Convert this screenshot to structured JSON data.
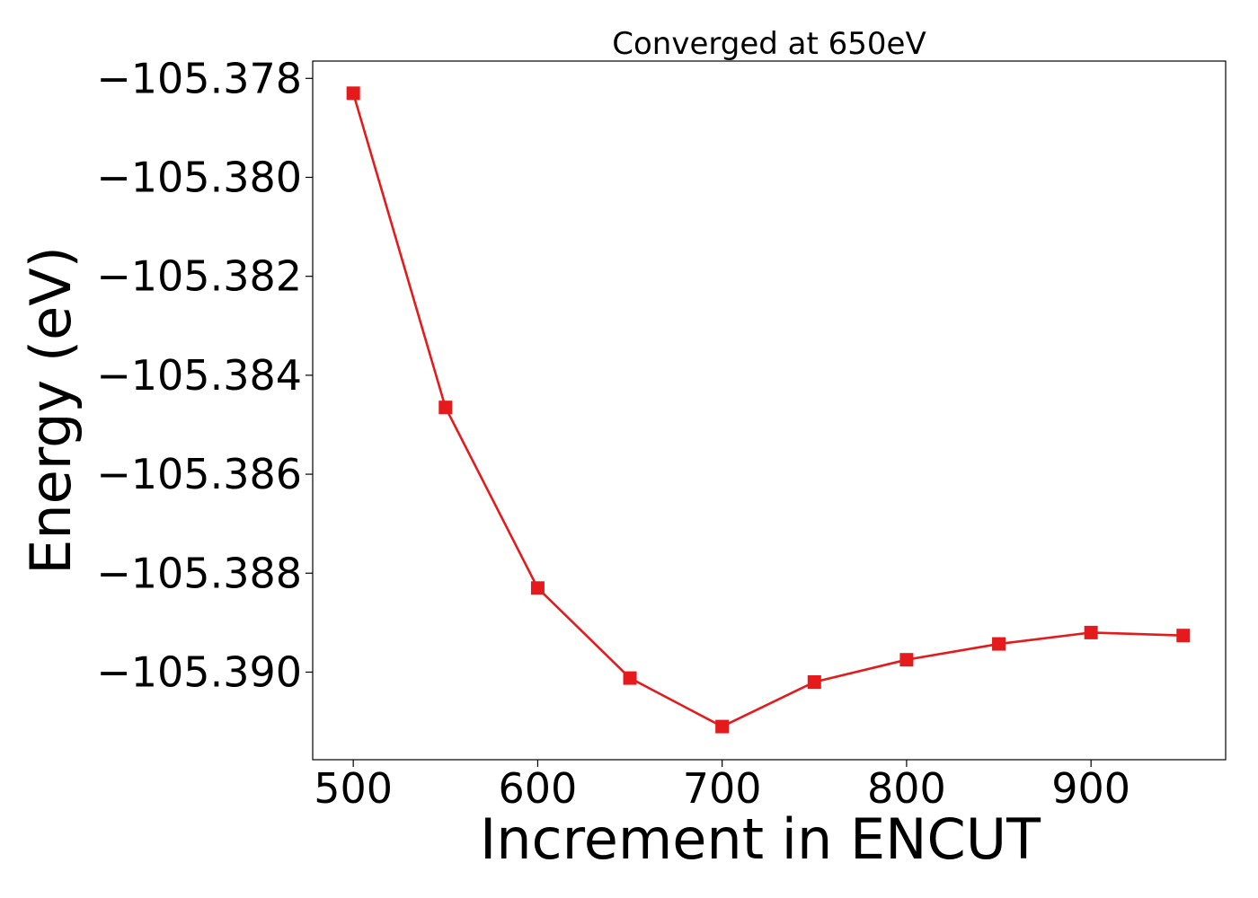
{
  "chart_data": {
    "type": "line",
    "title": "Converged at 650eV",
    "xlabel": "Increment in ENCUT",
    "ylabel": "Energy (eV)",
    "x": [
      500,
      550,
      600,
      650,
      700,
      750,
      800,
      850,
      900,
      950
    ],
    "series": [
      {
        "values": [
          -105.3783,
          -105.38465,
          -105.3883,
          -105.39012,
          -105.3911,
          -105.3902,
          -105.38975,
          -105.38943,
          -105.3892,
          -105.38926
        ],
        "color": "#e41a1c",
        "marker": "square"
      }
    ],
    "xlim": [
      478,
      973
    ],
    "ylim": [
      -105.39177,
      -105.37765
    ],
    "xticks": [
      500,
      600,
      700,
      800,
      900
    ],
    "xtick_labels": [
      "500",
      "600",
      "700",
      "800",
      "900"
    ],
    "yticks": [
      -105.378,
      -105.38,
      -105.382,
      -105.384,
      -105.386,
      -105.388,
      -105.39
    ],
    "ytick_labels": [
      "−105.378",
      "−105.380",
      "−105.382",
      "−105.384",
      "−105.386",
      "−105.388",
      "−105.390"
    ],
    "grid": false,
    "legend": "none"
  }
}
